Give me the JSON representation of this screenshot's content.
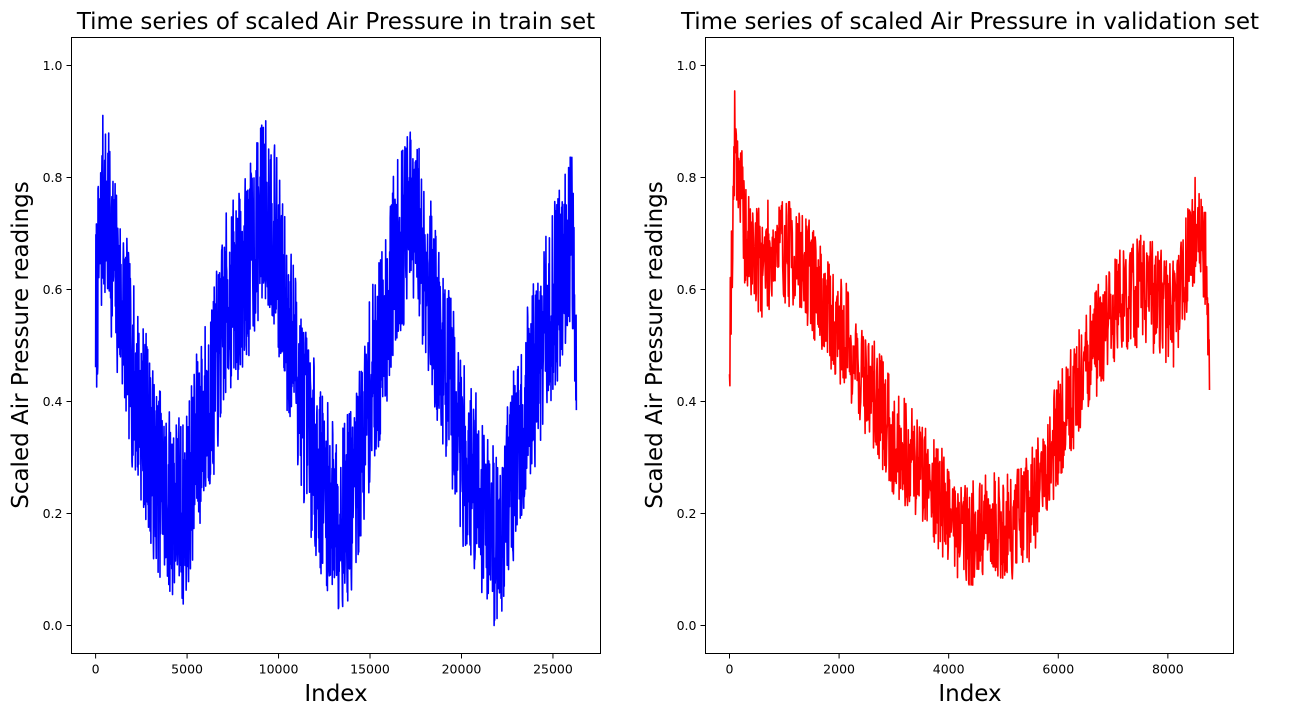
{
  "chart_data": [
    {
      "type": "line",
      "title": "Time series of scaled Air Pressure in train set",
      "xlabel": "Index",
      "ylabel": "Scaled Air Pressure readings",
      "xlim": [
        -1318,
        27599
      ],
      "ylim": [
        -0.05,
        1.05
      ],
      "xticks": [
        0,
        5000,
        10000,
        15000,
        20000,
        25000
      ],
      "xtick_labels": [
        "0",
        "5000",
        "10000",
        "15000",
        "20000",
        "25000"
      ],
      "yticks": [
        0.0,
        0.2,
        0.4,
        0.6,
        0.8,
        1.0
      ],
      "ytick_labels": [
        "0.0",
        "0.2",
        "0.4",
        "0.6",
        "0.8",
        "1.0"
      ],
      "grid": false,
      "series": [
        {
          "color": "#0000ff",
          "x": [
            0,
            400,
            800,
            1200,
            1600,
            2000,
            2400,
            2800,
            3200,
            3600,
            4000,
            4400,
            4800,
            5200,
            5600,
            6000,
            6400,
            6800,
            7200,
            7600,
            8000,
            8400,
            8800,
            9200,
            9600,
            10000,
            10400,
            10800,
            11200,
            11600,
            12000,
            12400,
            12800,
            13200,
            13600,
            14000,
            14400,
            14800,
            15200,
            15600,
            16000,
            16400,
            16800,
            17200,
            17600,
            18000,
            18400,
            18800,
            19200,
            19600,
            20000,
            20400,
            20800,
            21200,
            21600,
            22000,
            22400,
            22800,
            23200,
            23600,
            24000,
            24400,
            24800,
            25200,
            25600,
            26000,
            26280
          ],
          "y": [
            0.55,
            0.75,
            0.7,
            0.6,
            0.55,
            0.45,
            0.4,
            0.35,
            0.28,
            0.25,
            0.22,
            0.22,
            0.2,
            0.26,
            0.33,
            0.38,
            0.42,
            0.5,
            0.58,
            0.6,
            0.62,
            0.65,
            0.7,
            0.75,
            0.72,
            0.65,
            0.55,
            0.5,
            0.42,
            0.35,
            0.3,
            0.25,
            0.22,
            0.2,
            0.2,
            0.22,
            0.28,
            0.38,
            0.45,
            0.5,
            0.58,
            0.66,
            0.7,
            0.72,
            0.7,
            0.65,
            0.58,
            0.5,
            0.45,
            0.4,
            0.32,
            0.28,
            0.25,
            0.22,
            0.18,
            0.15,
            0.22,
            0.28,
            0.32,
            0.4,
            0.45,
            0.5,
            0.55,
            0.6,
            0.66,
            0.7,
            0.5
          ],
          "noise": 0.17,
          "samples": 1800
        }
      ]
    },
    {
      "type": "line",
      "title": "Time series of scaled Air Pressure in validation set",
      "xlabel": "Index",
      "ylabel": "Scaled Air Pressure readings",
      "xlim": [
        -438,
        9198
      ],
      "ylim": [
        -0.05,
        1.05
      ],
      "xticks": [
        0,
        2000,
        4000,
        6000,
        8000
      ],
      "xtick_labels": [
        "0",
        "2000",
        "4000",
        "6000",
        "8000"
      ],
      "yticks": [
        0.0,
        0.2,
        0.4,
        0.6,
        0.8,
        1.0
      ],
      "ytick_labels": [
        "0.0",
        "0.2",
        "0.4",
        "0.6",
        "0.8",
        "1.0"
      ],
      "grid": false,
      "series": [
        {
          "color": "#ff0000",
          "x": [
            0,
            100,
            300,
            600,
            900,
            1200,
            1500,
            1800,
            2100,
            2400,
            2700,
            3000,
            3300,
            3600,
            3900,
            4200,
            4500,
            4800,
            5100,
            5400,
            5700,
            6000,
            6300,
            6600,
            6900,
            7200,
            7500,
            7800,
            8100,
            8300,
            8500,
            8700,
            8760
          ],
          "y": [
            0.5,
            0.88,
            0.68,
            0.65,
            0.68,
            0.66,
            0.62,
            0.55,
            0.52,
            0.45,
            0.4,
            0.33,
            0.3,
            0.27,
            0.22,
            0.18,
            0.16,
            0.18,
            0.17,
            0.2,
            0.25,
            0.35,
            0.42,
            0.48,
            0.55,
            0.58,
            0.6,
            0.58,
            0.56,
            0.62,
            0.72,
            0.65,
            0.4
          ],
          "noise": 0.1,
          "samples": 1200
        }
      ]
    }
  ]
}
